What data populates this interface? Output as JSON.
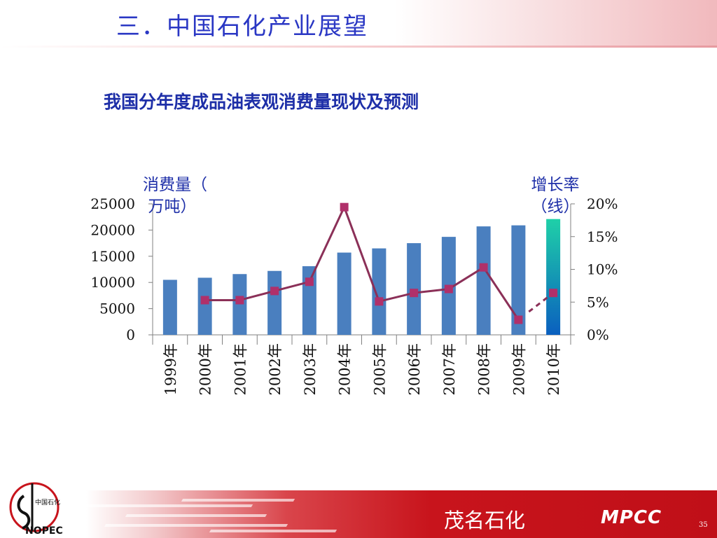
{
  "slide": {
    "title": "三．中国石化产业展望",
    "chart_title": "我国分年度成品油表观消费量现状及预测"
  },
  "footer": {
    "company": "茂名石化",
    "brand": "MPCC",
    "page_number": "35",
    "logo_text": "中国石化 SINOPEC"
  },
  "colors": {
    "bar": "#4a7fbf",
    "bar_forecast_top": "#1fd0a8",
    "bar_forecast_bottom": "#0a5fbf",
    "line": "#8b3058",
    "marker": "#b0306a",
    "accent_red": "#c8141c",
    "title_blue": "#2a37c4"
  },
  "chart_data": {
    "type": "bar",
    "categories": [
      "1999年",
      "2000年",
      "2001年",
      "2002年",
      "2003年",
      "2004年",
      "2005年",
      "2006年",
      "2007年",
      "2008年",
      "2009年",
      "2010年"
    ],
    "series": [
      {
        "name": "消费量",
        "axis": "left",
        "type": "bar",
        "values": [
          10500,
          10900,
          11600,
          12200,
          13100,
          15700,
          16500,
          17500,
          18700,
          20700,
          20900,
          22100
        ],
        "forecast_from_index": 11
      },
      {
        "name": "增长率",
        "axis": "right",
        "type": "line",
        "values": [
          null,
          5.3,
          5.3,
          6.7,
          8.1,
          19.5,
          5.1,
          6.4,
          7.0,
          10.3,
          2.3,
          6.4
        ],
        "dashed_from_index": 10
      }
    ],
    "y_left": {
      "label": "消费量（万吨）",
      "min": 0,
      "max": 25000,
      "ticks": [
        "25000",
        "20000",
        "15000",
        "10000",
        "5000",
        "0"
      ],
      "tick_values": [
        25000,
        20000,
        15000,
        10000,
        5000,
        0
      ]
    },
    "y_right": {
      "label": "增长率（线）",
      "min": 0,
      "max": 20,
      "ticks": [
        "20%",
        "15%",
        "10%",
        "5%",
        "0%"
      ],
      "tick_values": [
        20,
        15,
        10,
        5,
        0
      ]
    },
    "grid": false,
    "legend": "none"
  }
}
